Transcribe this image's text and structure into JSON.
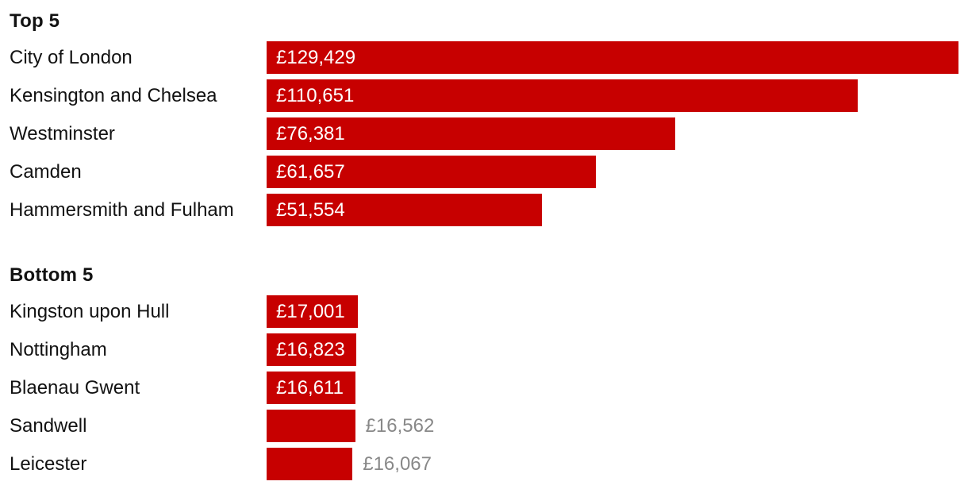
{
  "colors": {
    "bar": "#c70000",
    "label": "#121212",
    "value_inside": "#ffffff",
    "value_outside": "#888888",
    "background": "#ffffff"
  },
  "chart_data": {
    "type": "bar",
    "orientation": "horizontal",
    "xlim": [
      0,
      129429
    ],
    "grid": false,
    "legend": false,
    "sections": [
      {
        "title": "Top 5",
        "rows": [
          {
            "label": "City of London",
            "value": 129429,
            "value_label": "£129,429",
            "value_placement": "inside"
          },
          {
            "label": "Kensington and Chelsea",
            "value": 110651,
            "value_label": "£110,651",
            "value_placement": "inside"
          },
          {
            "label": "Westminster",
            "value": 76381,
            "value_label": "£76,381",
            "value_placement": "inside"
          },
          {
            "label": "Camden",
            "value": 61657,
            "value_label": "£61,657",
            "value_placement": "inside"
          },
          {
            "label": "Hammersmith and Fulham",
            "value": 51554,
            "value_label": "£51,554",
            "value_placement": "inside"
          }
        ]
      },
      {
        "title": "Bottom 5",
        "rows": [
          {
            "label": "Kingston upon Hull",
            "value": 17001,
            "value_label": "£17,001",
            "value_placement": "inside"
          },
          {
            "label": "Nottingham",
            "value": 16823,
            "value_label": "£16,823",
            "value_placement": "inside"
          },
          {
            "label": "Blaenau Gwent",
            "value": 16611,
            "value_label": "£16,611",
            "value_placement": "inside"
          },
          {
            "label": "Sandwell",
            "value": 16562,
            "value_label": "£16,562",
            "value_placement": "outside"
          },
          {
            "label": "Leicester",
            "value": 16067,
            "value_label": "£16,067",
            "value_placement": "outside"
          }
        ]
      }
    ]
  }
}
